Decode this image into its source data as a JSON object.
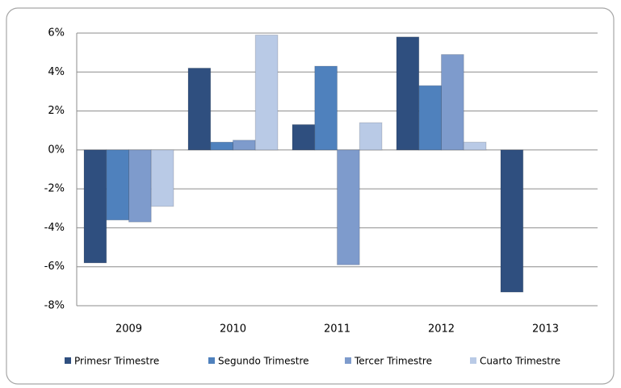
{
  "chart_data": {
    "type": "bar",
    "categories": [
      "2009",
      "2010",
      "2011",
      "2012",
      "2013"
    ],
    "series": [
      {
        "name": "Primesr Trimestre",
        "color": "#2f4f7f",
        "values": [
          -5.8,
          4.2,
          1.3,
          5.8,
          -7.3
        ]
      },
      {
        "name": "Segundo Trimestre",
        "color": "#4f81bd",
        "values": [
          -3.6,
          0.4,
          4.3,
          3.3,
          null
        ]
      },
      {
        "name": "Tercer Trimestre",
        "color": "#7e9bcc",
        "values": [
          -3.7,
          0.5,
          -5.9,
          4.9,
          null
        ]
      },
      {
        "name": "Cuarto Trimestre",
        "color": "#b9cae6",
        "values": [
          -2.9,
          5.9,
          1.4,
          0.4,
          null
        ]
      }
    ],
    "ylim": [
      -8,
      6
    ],
    "yticks": [
      {
        "value": -8,
        "label": "-8%"
      },
      {
        "value": -6,
        "label": "-6%"
      },
      {
        "value": -4,
        "label": "-4%"
      },
      {
        "value": -2,
        "label": "-2%"
      },
      {
        "value": 0,
        "label": "0%"
      },
      {
        "value": 2,
        "label": "2%"
      },
      {
        "value": 4,
        "label": "4%"
      },
      {
        "value": 6,
        "label": "6%"
      }
    ],
    "grid": true,
    "legend": "bottom"
  }
}
